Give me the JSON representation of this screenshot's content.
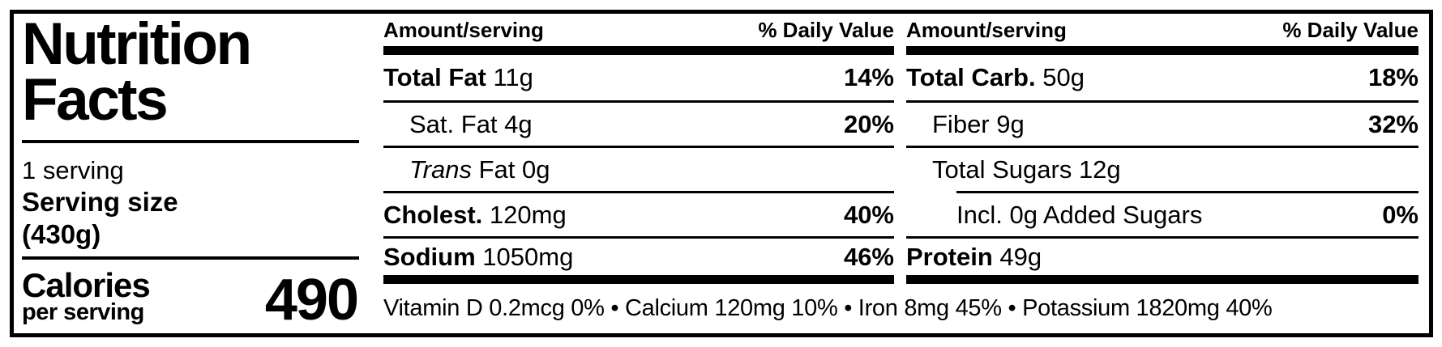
{
  "label": {
    "title_line1": "Nutrition",
    "title_line2": "Facts",
    "servings_per_container": "1 serving",
    "serving_size_label": "Serving size",
    "serving_size_value": "(430g)",
    "calories_label": "Calories",
    "calories_sublabel": "per serving",
    "calories_value": "490"
  },
  "colors": {
    "ink": "#000000",
    "background": "#ffffff"
  },
  "columns": [
    {
      "header_amount": "Amount/serving",
      "header_dv": "% Daily Value",
      "rows": [
        {
          "name": "Total Fat",
          "amount": "11g",
          "dv": "14%",
          "style": "bold",
          "indent": 0
        },
        {
          "name": "Sat. Fat",
          "amount": "4g",
          "dv": "20%",
          "style": "regular",
          "indent": 1
        },
        {
          "name": "Trans",
          "amount": "Fat 0g",
          "dv": "",
          "style": "italic",
          "indent": 1
        },
        {
          "name": "Cholest.",
          "amount": "120mg",
          "dv": "40%",
          "style": "bold",
          "indent": 0
        },
        {
          "name": "Sodium",
          "amount": "1050mg",
          "dv": "46%",
          "style": "bold",
          "indent": 0
        }
      ]
    },
    {
      "header_amount": "Amount/serving",
      "header_dv": "% Daily Value",
      "rows": [
        {
          "name": "Total Carb.",
          "amount": "50g",
          "dv": "18%",
          "style": "bold",
          "indent": 0
        },
        {
          "name": "Fiber",
          "amount": "9g",
          "dv": "32%",
          "style": "regular",
          "indent": 1
        },
        {
          "name": "Total Sugars",
          "amount": "12g",
          "dv": "",
          "style": "regular",
          "indent": 1
        },
        {
          "name": "Incl. 0g Added Sugars",
          "amount": "",
          "dv": "0%",
          "style": "regular",
          "indent": 2,
          "rule_indent": true
        },
        {
          "name": "Protein",
          "amount": "49g",
          "dv": "",
          "style": "bold",
          "indent": 0
        }
      ]
    }
  ],
  "footer": {
    "separator": "•",
    "micronutrients": [
      {
        "name": "Vitamin D",
        "amount": "0.2mcg",
        "dv": "0%"
      },
      {
        "name": "Calcium",
        "amount": "120mg",
        "dv": "10%"
      },
      {
        "name": "Iron",
        "amount": "8mg",
        "dv": "45%"
      },
      {
        "name": "Potassium",
        "amount": "1820mg",
        "dv": "40%"
      }
    ]
  }
}
